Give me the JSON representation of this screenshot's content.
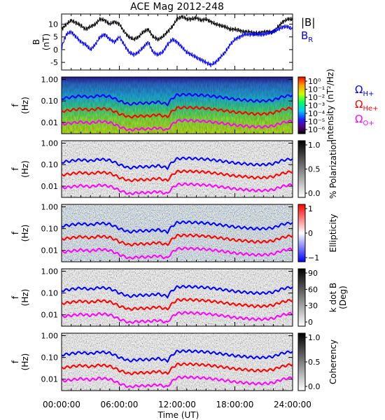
{
  "chart_data": {
    "type": "line",
    "title": "ACE Mag 2012-248",
    "xlabel": "Time (UT)",
    "x_ticks": [
      "00:00:00",
      "06:00:00",
      "12:00:00",
      "18:00:00",
      "24:00:00"
    ],
    "panels": [
      {
        "kind": "line",
        "ylabel_top": "B",
        "ylabel_bottom": "(nT)",
        "ylim": [
          -8,
          14
        ],
        "y_ticks": [
          "10",
          "5",
          "0",
          "-5"
        ],
        "legend": [
          "|B|",
          "BR"
        ],
        "series": [
          {
            "name": "|B|",
            "color": "#000000",
            "x": [
              0,
              0.5,
              1,
              1.5,
              2,
              2.5,
              3,
              3.5,
              4,
              4.5,
              5,
              5.5,
              6,
              6.5,
              7,
              7.5,
              8,
              8.5,
              9,
              9.5,
              10,
              10.5,
              11,
              11.5,
              12,
              12.5,
              13,
              13.5,
              14,
              14.5,
              15,
              15.5,
              16,
              16.5,
              17,
              17.5,
              18,
              18.5,
              19,
              19.5,
              20,
              20.5,
              21,
              21.5,
              22,
              22.5,
              23,
              23.5,
              24
            ],
            "y": [
              8,
              10,
              11.5,
              10.5,
              9.5,
              8,
              9,
              10,
              12,
              11.5,
              10,
              11,
              10,
              7,
              5,
              4,
              5,
              7,
              8,
              5,
              4,
              5,
              7,
              9,
              12,
              13,
              12,
              12,
              12.5,
              11.5,
              12,
              11,
              10,
              9.5,
              9,
              8,
              8,
              7.5,
              7,
              7,
              6.5,
              6.5,
              7,
              7,
              7,
              9,
              11,
              12,
              12
            ]
          },
          {
            "name": "BR",
            "color": "#0000ff",
            "x": [
              0,
              0.5,
              1,
              1.5,
              2,
              2.5,
              3,
              3.5,
              4,
              4.5,
              5,
              5.5,
              6,
              6.5,
              7,
              7.5,
              8,
              8.5,
              9,
              9.5,
              10,
              10.5,
              11,
              11.5,
              12,
              12.5,
              13,
              13.5,
              14,
              14.5,
              15,
              15.5,
              16,
              16.5,
              17,
              17.5,
              18,
              18.5,
              19,
              19.5,
              20,
              20.5,
              21,
              21.5,
              22,
              22.5,
              23,
              23.5,
              24
            ],
            "y": [
              1,
              6,
              7,
              5,
              3,
              2,
              0,
              2,
              5,
              6,
              4,
              3,
              5,
              2,
              -1,
              -2,
              -1,
              1,
              3,
              -1,
              -2,
              -1,
              2,
              4,
              3,
              1,
              -1,
              -2,
              -3,
              -4,
              -5,
              -6,
              -5,
              -3,
              -1,
              2,
              4,
              5,
              6,
              6,
              6,
              6,
              6,
              6.5,
              7,
              8,
              9,
              9,
              8
            ]
          }
        ]
      },
      {
        "kind": "spectrogram",
        "ylabel_top": "f",
        "ylabel_bottom": "(Hz)",
        "y_ticks": [
          "1.00",
          "0.10",
          "0.01"
        ],
        "colorbar_label": "Intensity (nT²/Hz)",
        "colorbar_ticks": [
          "10⁰",
          "10⁻¹",
          "10⁻²",
          "10⁻³",
          "10⁻⁴",
          "10⁻⁵",
          "10⁻⁶"
        ],
        "colormap": "rainbow"
      },
      {
        "kind": "spectrogram",
        "ylabel_top": "f",
        "ylabel_bottom": "(Hz)",
        "y_ticks": [
          "1.00",
          "0.10",
          "0.01"
        ],
        "colorbar_label": "% Polarization",
        "colorbar_ticks": [
          "1.0",
          "0.5",
          "0.0"
        ],
        "colormap": "gray"
      },
      {
        "kind": "spectrogram",
        "ylabel_top": "f",
        "ylabel_bottom": "(Hz)",
        "y_ticks": [
          "1.00",
          "0.10",
          "0.01"
        ],
        "colorbar_label": "Ellipticity",
        "colorbar_ticks": [
          "1",
          "0",
          "−1"
        ],
        "colormap": "bwr"
      },
      {
        "kind": "spectrogram",
        "ylabel_top": "f",
        "ylabel_bottom": "(Hz)",
        "y_ticks": [
          "1.00",
          "0.10",
          "0.01"
        ],
        "colorbar_label_top": "k dot B",
        "colorbar_label_bottom": "(Deg)",
        "colorbar_ticks": [
          "90",
          "60",
          "30",
          "0"
        ],
        "colormap": "gray"
      },
      {
        "kind": "spectrogram",
        "ylabel_top": "f",
        "ylabel_bottom": "(Hz)",
        "y_ticks": [
          "1.00",
          "0.10",
          "0.01"
        ],
        "colorbar_label": "Coherency",
        "colorbar_ticks": [
          "1.0",
          "0.5",
          "0.0"
        ],
        "colormap": "gray"
      }
    ],
    "gyrofrequency_legend": [
      {
        "label": "ΩH+",
        "color": "#0000ff"
      },
      {
        "label": "ΩHe+",
        "color": "#ff0000"
      },
      {
        "label": "ΩO+",
        "color": "#ff00ff"
      }
    ],
    "gyrofrequency_lines": {
      "x": [
        0,
        1,
        2,
        3,
        4,
        5,
        6,
        7,
        8,
        9,
        10,
        11,
        12,
        13,
        14,
        15,
        16,
        17,
        18,
        19,
        20,
        21,
        22,
        23,
        24
      ],
      "f_H": [
        0.13,
        0.15,
        0.17,
        0.15,
        0.18,
        0.16,
        0.1,
        0.07,
        0.08,
        0.08,
        0.09,
        0.07,
        0.19,
        0.2,
        0.19,
        0.18,
        0.16,
        0.14,
        0.12,
        0.11,
        0.1,
        0.1,
        0.11,
        0.16,
        0.19
      ],
      "f_He": [
        0.033,
        0.038,
        0.043,
        0.038,
        0.045,
        0.04,
        0.025,
        0.018,
        0.02,
        0.02,
        0.023,
        0.018,
        0.048,
        0.05,
        0.048,
        0.045,
        0.04,
        0.035,
        0.03,
        0.028,
        0.025,
        0.025,
        0.028,
        0.04,
        0.048
      ],
      "f_O": [
        0.0082,
        0.0094,
        0.0106,
        0.0094,
        0.0113,
        0.01,
        0.0063,
        0.0044,
        0.005,
        0.005,
        0.0056,
        0.0044,
        0.0119,
        0.0125,
        0.0119,
        0.0113,
        0.01,
        0.0088,
        0.0075,
        0.0069,
        0.0063,
        0.0063,
        0.0069,
        0.01,
        0.0119
      ]
    },
    "flim": [
      0.003,
      1.3
    ],
    "xlim": [
      0,
      24
    ]
  }
}
